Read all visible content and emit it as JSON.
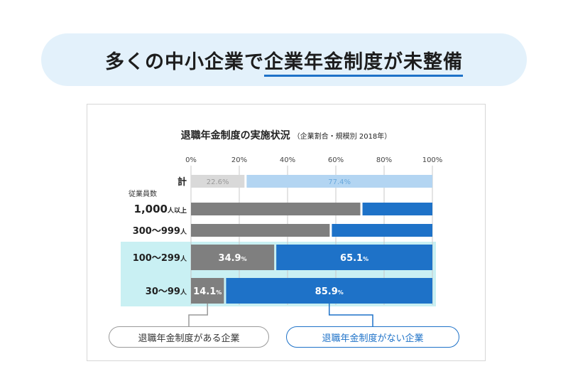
{
  "header": {
    "title_prefix": "多くの中小企業で",
    "title_highlight": "企業年金制度が未整備"
  },
  "chart_data": {
    "type": "bar",
    "stacked": true,
    "orientation": "horizontal",
    "title": "退職年金制度の実施状況",
    "subtitle": "（企業割合・規模別 2018年）",
    "group_label": "従業員数",
    "x_ticks": [
      "0%",
      "20%",
      "40%",
      "60%",
      "80%",
      "100%"
    ],
    "xlim": [
      0,
      100
    ],
    "categories": [
      "計",
      "1,000人以上",
      "300～999人",
      "100～299人",
      "30～99人"
    ],
    "highlighted_categories": [
      "100～299人",
      "30～99人"
    ],
    "series": [
      {
        "name": "退職年金制度がある企業",
        "values": [
          22.6,
          70.6,
          57.9,
          34.9,
          14.1
        ],
        "labels": [
          "22.6%",
          "",
          "",
          "34.9%",
          "14.1%"
        ]
      },
      {
        "name": "退職年金制度がない企業",
        "values": [
          77.4,
          29.4,
          42.1,
          65.1,
          85.9
        ],
        "labels": [
          "77.4%",
          "",
          "",
          "65.1%",
          "85.9%"
        ]
      }
    ]
  },
  "legend": {
    "with_plan": "退職年金制度がある企業",
    "without_plan": "退職年金制度がない企業"
  },
  "colors": {
    "with_plan": "#7f7f7f",
    "without_plan": "#1e72c8",
    "total_with_plan": "#d9d9d9",
    "total_without_plan": "#b3d5f2",
    "highlight_band": "#c9f0f3"
  }
}
